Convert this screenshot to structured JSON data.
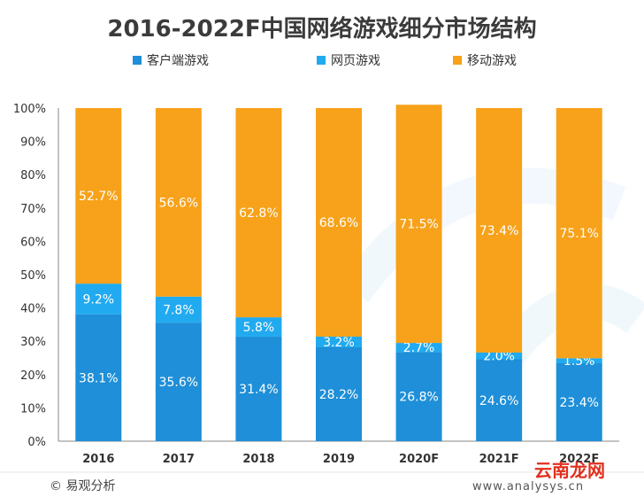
{
  "chart_data": {
    "type": "bar",
    "stacked": true,
    "title": "2016-2022F中国网络游戏细分市场结构",
    "categories": [
      "2016",
      "2017",
      "2018",
      "2019",
      "2020F",
      "2021F",
      "2022F"
    ],
    "series": [
      {
        "name": "客户端游戏",
        "color": "#1e8fd8",
        "values": [
          38.1,
          35.6,
          31.4,
          28.2,
          26.8,
          24.6,
          23.4
        ],
        "labels": [
          "38.1%",
          "35.6%",
          "31.4%",
          "28.2%",
          "26.8%",
          "24.6%",
          "23.4%"
        ]
      },
      {
        "name": "网页游戏",
        "color": "#21aaf0",
        "values": [
          9.2,
          7.8,
          5.8,
          3.2,
          2.7,
          2.0,
          1.5
        ],
        "labels": [
          "9.2%",
          "7.8%",
          "5.8%",
          "3.2%",
          "2.7%",
          "2.0%",
          "1.5%"
        ]
      },
      {
        "name": "移动游戏",
        "color": "#f7a21a",
        "values": [
          52.7,
          56.6,
          62.8,
          68.6,
          71.5,
          73.4,
          75.1
        ],
        "labels": [
          "52.7%",
          "56.6%",
          "62.8%",
          "68.6%",
          "71.5%",
          "73.4%",
          "75.1%"
        ]
      }
    ],
    "yticks": [
      "0%",
      "10%",
      "20%",
      "30%",
      "40%",
      "50%",
      "60%",
      "70%",
      "80%",
      "90%",
      "100%"
    ],
    "ylim": [
      0,
      100
    ],
    "grid": false,
    "legend_position": "top"
  },
  "footer": {
    "source": "© 易观分析",
    "website": "www.analysys.cn"
  },
  "watermark": {
    "text": "云南龙网"
  },
  "colors": {
    "legend_square_1": "#1e8fd8",
    "legend_square_2": "#21aaf0",
    "legend_square_3": "#f7a21a"
  }
}
